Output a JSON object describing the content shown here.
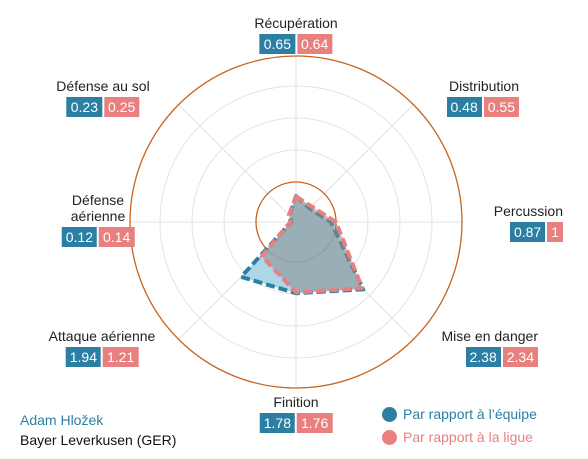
{
  "chart_data": {
    "type": "radar",
    "categories": [
      "Récupération",
      "Distribution",
      "Percussion",
      "Mise en danger",
      "Finition",
      "Attaque aérienne",
      "Défense aérienne",
      "Défense au sol"
    ],
    "series": [
      {
        "name": "Par rapport à l’équipe",
        "color": "#2b7fa3",
        "values": [
          0.65,
          0.48,
          0.87,
          2.38,
          1.78,
          1.94,
          0.12,
          0.23
        ]
      },
      {
        "name": "Par rapport à la ligue",
        "color": "#e88080",
        "values": [
          0.64,
          0.55,
          1.0,
          2.34,
          1.76,
          1.21,
          0.14,
          0.25
        ]
      }
    ],
    "player": "Adam Hložek",
    "team": "Bayer Leverkusen (GER)"
  }
}
